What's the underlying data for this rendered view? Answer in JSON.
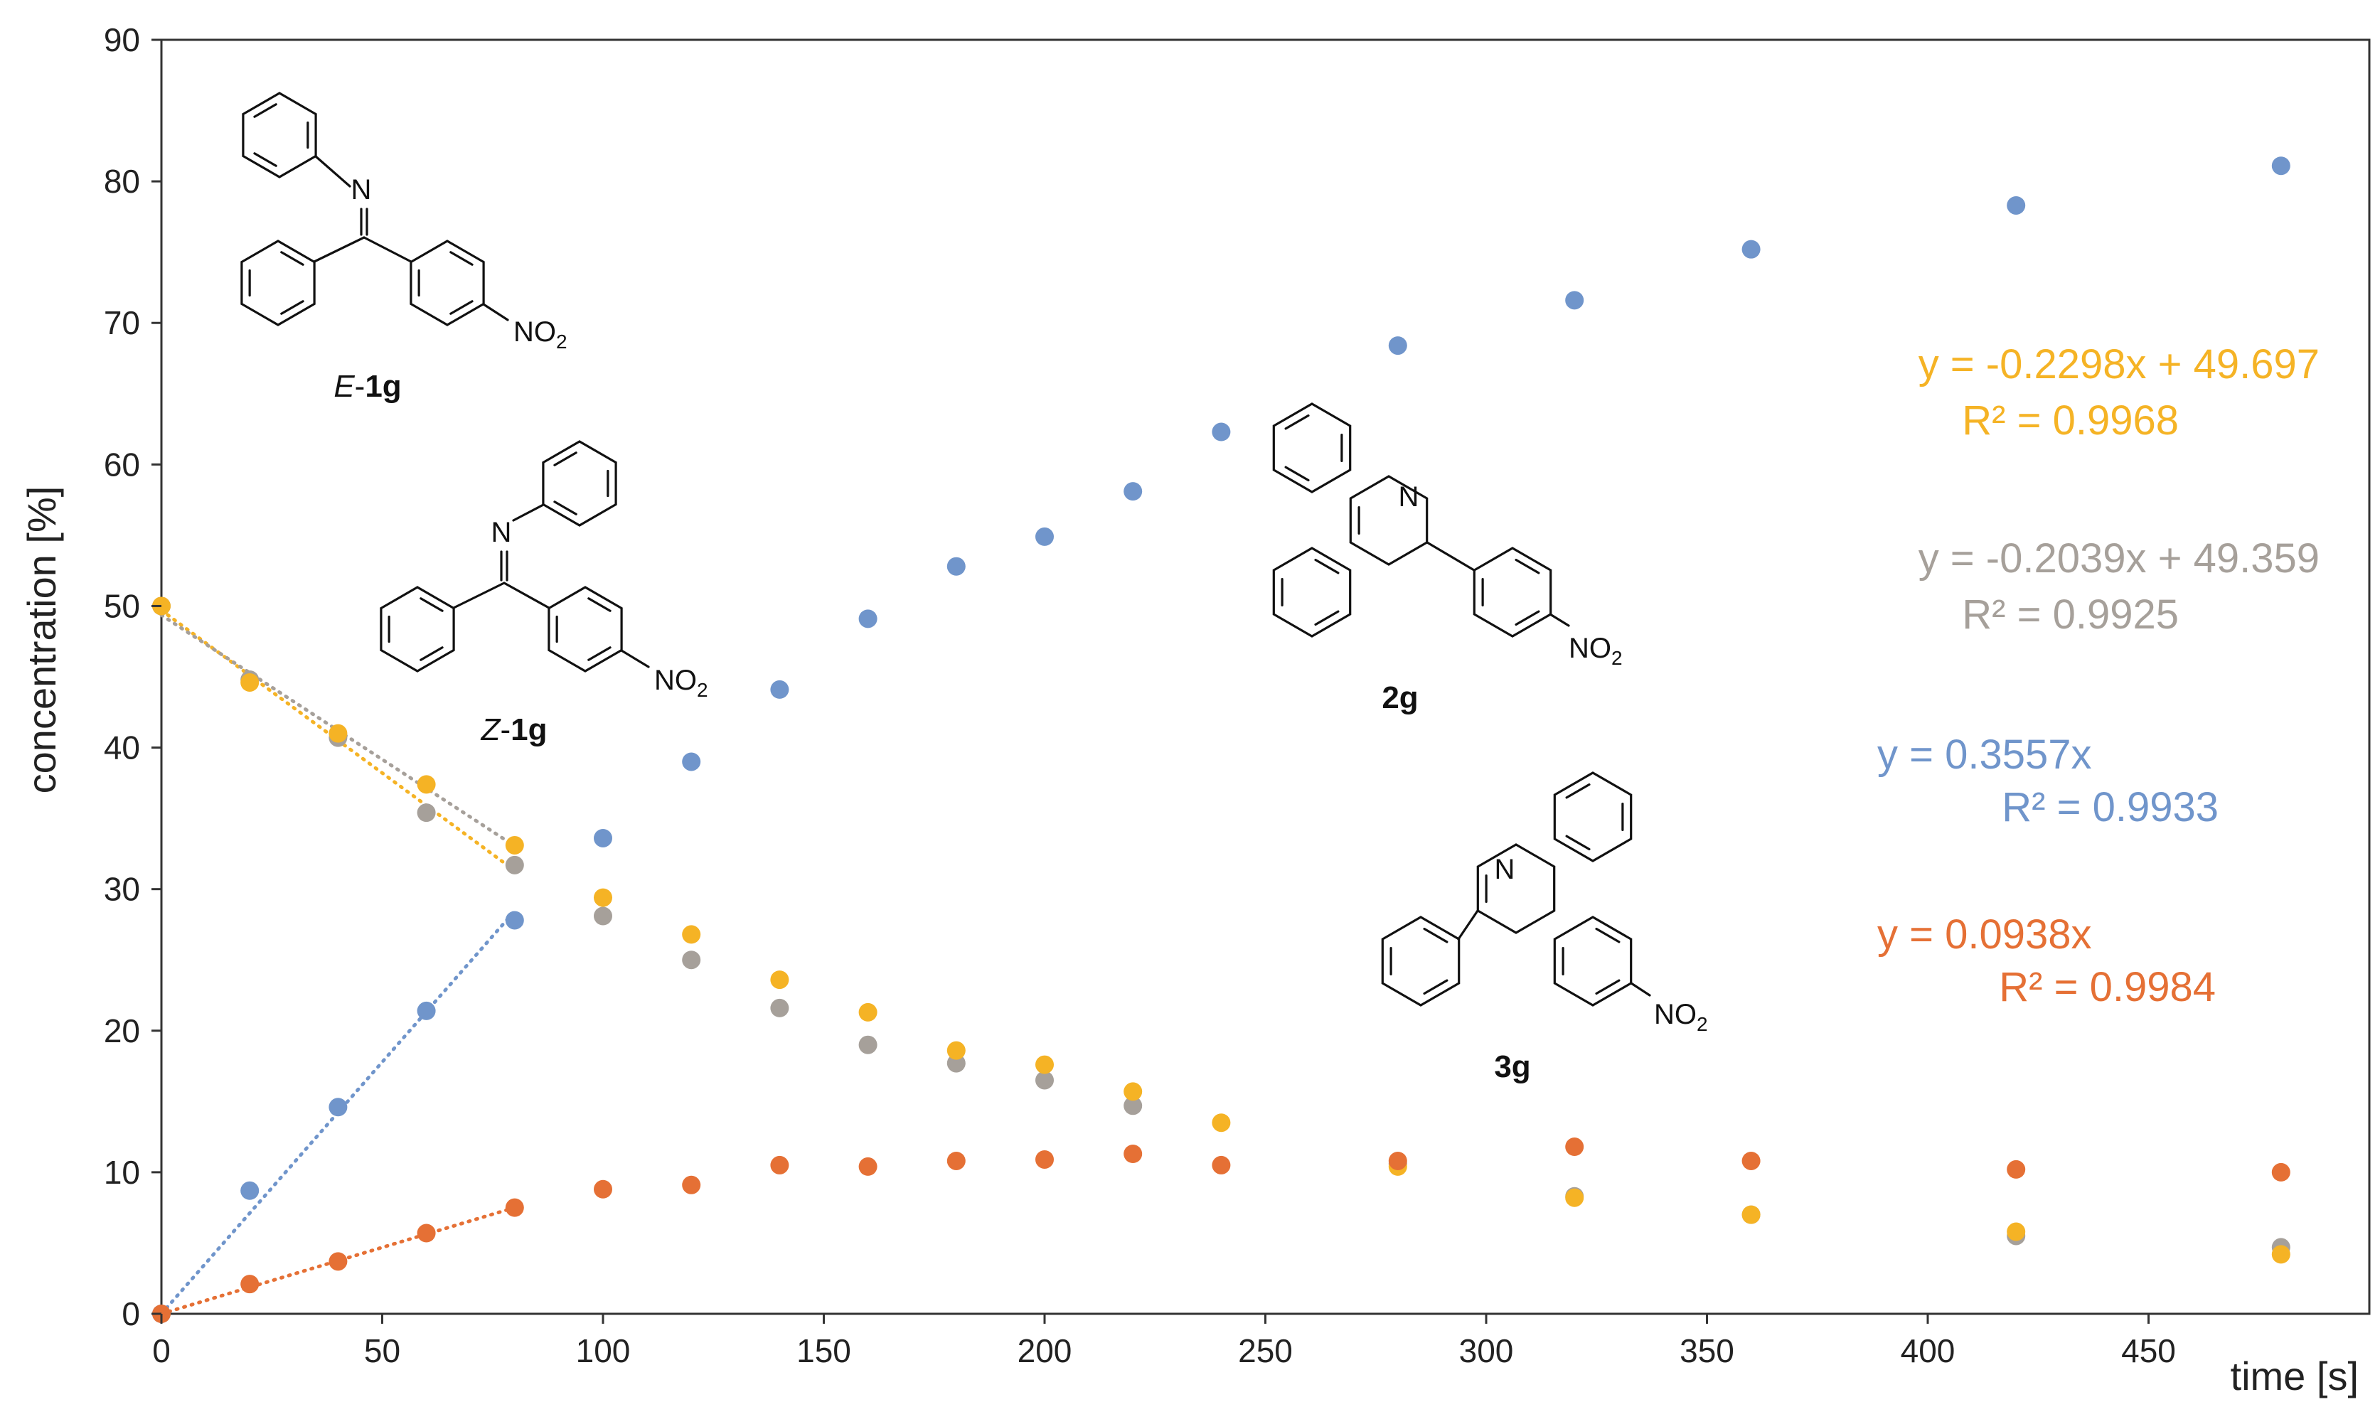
{
  "chart_data": {
    "type": "scatter",
    "xlabel": "time [s]",
    "ylabel": "concentration [%]",
    "xlim": [
      0,
      500
    ],
    "ylim": [
      0,
      90
    ],
    "x_ticks": [
      0,
      50,
      100,
      150,
      200,
      250,
      300,
      350,
      400,
      450
    ],
    "y_ticks": [
      0,
      10,
      20,
      30,
      40,
      50,
      60,
      70,
      80,
      90
    ],
    "grid": false,
    "series": [
      {
        "id": "E-1g",
        "color": "#F5B325",
        "x": [
          0,
          20,
          40,
          60,
          80,
          100,
          120,
          140,
          160,
          180,
          200,
          220,
          240,
          280,
          320,
          360,
          420,
          480
        ],
        "y": [
          50.0,
          44.6,
          41.0,
          37.4,
          33.1,
          29.4,
          26.8,
          23.6,
          21.3,
          18.6,
          17.6,
          15.7,
          13.5,
          10.4,
          8.2,
          7.0,
          5.8,
          4.2
        ],
        "trendline": {
          "slope": -0.2298,
          "intercept": 49.697,
          "x_range": [
            0,
            80
          ]
        }
      },
      {
        "id": "Z-1g",
        "color": "#A6A09A",
        "x": [
          0,
          20,
          40,
          60,
          80,
          100,
          120,
          140,
          160,
          180,
          200,
          220,
          280,
          320,
          360,
          420,
          480
        ],
        "y": [
          50.0,
          44.8,
          40.7,
          35.4,
          31.7,
          28.1,
          25.0,
          21.6,
          19.0,
          17.7,
          16.5,
          14.7,
          10.6,
          8.3,
          7.0,
          5.5,
          4.7
        ],
        "trendline": {
          "slope": -0.2039,
          "intercept": 49.359,
          "x_range": [
            0,
            80
          ]
        }
      },
      {
        "id": "2g",
        "color": "#7095CB",
        "x": [
          0,
          20,
          40,
          60,
          80,
          100,
          120,
          140,
          160,
          180,
          200,
          220,
          240,
          280,
          320,
          360,
          420,
          480
        ],
        "y": [
          0,
          8.7,
          14.6,
          21.4,
          27.8,
          33.6,
          39.0,
          44.1,
          49.1,
          52.8,
          54.9,
          58.1,
          62.3,
          68.4,
          71.6,
          75.2,
          78.3,
          81.1
        ],
        "trendline": {
          "slope": 0.3557,
          "intercept": 0,
          "x_range": [
            0,
            80
          ]
        }
      },
      {
        "id": "3g",
        "color": "#E57035",
        "x": [
          0,
          20,
          40,
          60,
          80,
          100,
          120,
          140,
          160,
          180,
          200,
          220,
          240,
          280,
          320,
          360,
          420,
          480
        ],
        "y": [
          0,
          2.1,
          3.7,
          5.7,
          7.5,
          8.8,
          9.1,
          10.5,
          10.4,
          10.8,
          10.9,
          11.3,
          10.5,
          10.8,
          11.8,
          10.8,
          10.2,
          10.0
        ],
        "trendline": {
          "slope": 0.0938,
          "intercept": 0,
          "x_range": [
            0,
            80
          ]
        }
      }
    ],
    "annotations": [
      {
        "series": "E-1g",
        "equation": "y = -0.2298x + 49.697",
        "r2": "R² = 0.9968"
      },
      {
        "series": "Z-1g",
        "equation": "y = -0.2039x + 49.359",
        "r2": "R² = 0.9925"
      },
      {
        "series": "2g",
        "equation": "y = 0.3557x",
        "r2": "R² = 0.9933"
      },
      {
        "series": "3g",
        "equation": "y = 0.0938x",
        "r2": "R² = 0.9984"
      }
    ],
    "structures": [
      {
        "series": "E-1g",
        "label_prefix": "E",
        "label_rest": "-",
        "label_bold": "1g"
      },
      {
        "series": "Z-1g",
        "label_prefix": "Z",
        "label_rest": "-",
        "label_bold": "1g"
      },
      {
        "series": "2g",
        "label_bold": "2g"
      },
      {
        "series": "3g",
        "label_bold": "3g"
      }
    ],
    "atom_labels": {
      "nitrogen": "N",
      "nitro_main": "NO",
      "nitro_sub": "2"
    }
  }
}
